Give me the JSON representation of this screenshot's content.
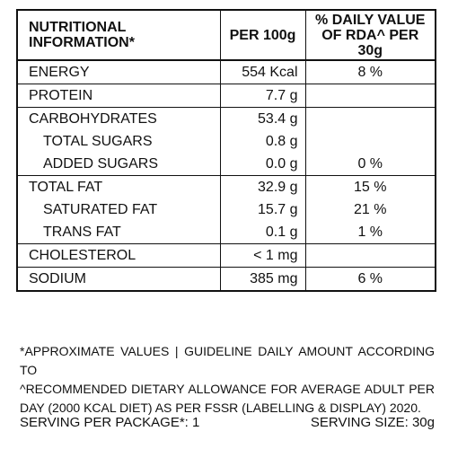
{
  "header": {
    "nutrient": "NUTRITIONAL INFORMATION*",
    "per_100g": "PER 100g",
    "daily_value": "% DAILY VALUE OF RDA^ PER 30g"
  },
  "rows": [
    {
      "name": "ENERGY",
      "value": "554 Kcal",
      "dv": "8 %"
    },
    {
      "name": "PROTEIN",
      "value": "7.7 g",
      "dv": ""
    },
    {
      "name": "CARBOHYDRATES",
      "value": "53.4 g",
      "dv": ""
    },
    {
      "name": "TOTAL SUGARS",
      "value": "0.8 g",
      "dv": ""
    },
    {
      "name": "ADDED SUGARS",
      "value": "0.0 g",
      "dv": "0 %"
    },
    {
      "name": "TOTAL FAT",
      "value": "32.9 g",
      "dv": "15 %"
    },
    {
      "name": "SATURATED FAT",
      "value": "15.7 g",
      "dv": "21 %"
    },
    {
      "name": "TRANS FAT",
      "value": "0.1 g",
      "dv": "1 %"
    },
    {
      "name": "CHOLESTEROL",
      "value": "< 1 mg",
      "dv": ""
    },
    {
      "name": "SODIUM",
      "value": "385 mg",
      "dv": "6 %"
    }
  ],
  "footnote": {
    "line1": "*APPROXIMATE VALUES | GUIDELINE DAILY AMOUNT ACCORDING TO",
    "line2": "^RECOMMENDED DIETARY ALLOWANCE FOR AVERAGE ADULT PER DAY (2000 KCAL DIET) AS PER FSSR (LABELLING & DISPLAY) 2020."
  },
  "serving": {
    "per_package": "SERVING PER PACKAGE*: 1",
    "size": "SERVING SIZE: 30g"
  }
}
